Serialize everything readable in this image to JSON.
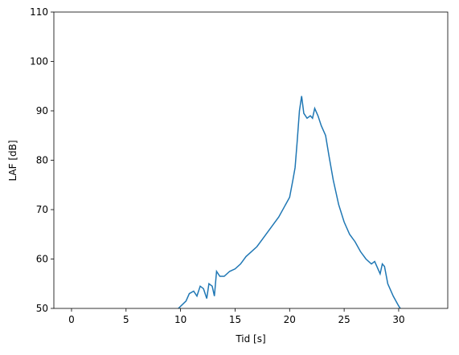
{
  "chart_data": {
    "type": "line",
    "xlabel": "Tid [s]",
    "ylabel": "LAF [dB]",
    "xlim": [
      -1.62,
      34.5
    ],
    "ylim": [
      50,
      110
    ],
    "xticks": [
      0,
      5,
      10,
      15,
      20,
      25,
      30
    ],
    "yticks": [
      50,
      60,
      70,
      80,
      90,
      100,
      110
    ],
    "grid": false,
    "x": [
      9.8,
      10.5,
      10.8,
      11.2,
      11.5,
      11.8,
      12.1,
      12.4,
      12.6,
      12.9,
      13.1,
      13.3,
      13.6,
      14,
      14.5,
      15,
      15.5,
      16,
      16.5,
      17,
      17.5,
      18,
      18.5,
      19,
      19.5,
      20,
      20.3,
      20.5,
      20.7,
      20.9,
      21.1,
      21.3,
      21.6,
      21.9,
      22.1,
      22.3,
      22.6,
      22.9,
      23.3,
      23.6,
      24,
      24.5,
      25,
      25.5,
      26,
      26.5,
      27,
      27.5,
      27.8,
      28,
      28.3,
      28.5,
      28.7,
      29,
      29.5,
      30,
      30.3
    ],
    "series": [
      {
        "color": "#1f77b4",
        "values": [
          50,
          51.5,
          53,
          53.5,
          52.5,
          54.5,
          54,
          52,
          55,
          54.5,
          52.5,
          57.5,
          56.5,
          56.5,
          57.5,
          58,
          59,
          60.5,
          61.5,
          62.5,
          64,
          65.5,
          67,
          68.5,
          70.5,
          72.5,
          76,
          78.5,
          84,
          90,
          93,
          89.5,
          88.5,
          89,
          88.5,
          90.5,
          89,
          87,
          85,
          81,
          76,
          71,
          67.5,
          65,
          63.5,
          61.5,
          60,
          59,
          59.5,
          58.5,
          57,
          59,
          58.5,
          55,
          52.5,
          50.5,
          49.5
        ]
      }
    ]
  }
}
